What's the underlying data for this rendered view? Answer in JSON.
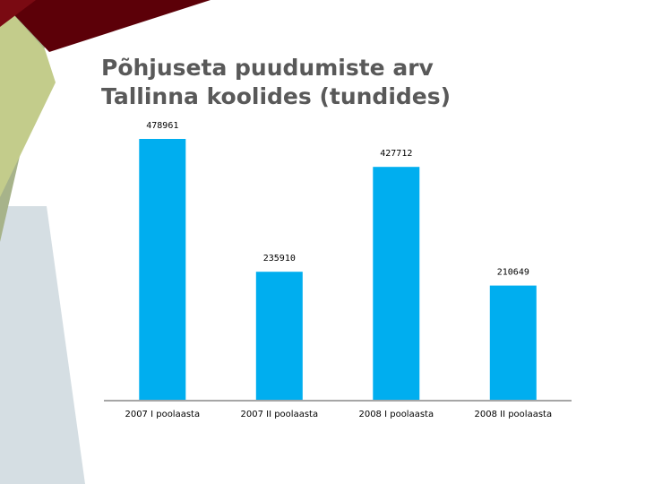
{
  "title_lines": [
    "Põhjuseta puudumiste arv",
    "Tallinna koolides (tundides)"
  ],
  "colors": {
    "bar": "#00aeef",
    "axis": "#a6a6a6",
    "title": "#595959",
    "decor_dark_red": "#5c0008",
    "decor_olive": "#c3cc8b",
    "decor_sage": "#a7b38a",
    "decor_grey": "#d5dee3"
  },
  "chart_data": {
    "type": "bar",
    "title": "Põhjuseta puudumiste arv Tallinna koolides (tundides)",
    "categories": [
      "2007 I poolaasta",
      "2007 II poolaasta",
      "2008 I poolaasta",
      "2008 II poolaasta"
    ],
    "values": [
      478961,
      235910,
      427712,
      210649
    ],
    "data_labels": [
      "478961",
      "235910",
      "427712",
      "210649"
    ],
    "xlabel": "",
    "ylabel": "",
    "ylim": [
      0,
      478961
    ],
    "grid": false,
    "legend": "none"
  }
}
